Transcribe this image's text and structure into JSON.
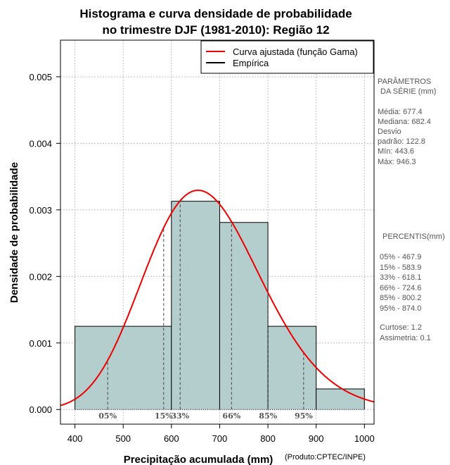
{
  "chart_data": {
    "type": "histogram",
    "title_line1": "Histograma e curva densidade de probabilidade",
    "title_line2": "no trimestre DJF (1981-2010): Região 12",
    "xlabel": "Precipitação acumulada (mm)",
    "ylabel": "Densidade de probabilidade",
    "credit": "(Produto:CPTEC/INPE)",
    "xlim": [
      370,
      1020
    ],
    "ylim": [
      -0.00022,
      0.00555
    ],
    "x_ticks": [
      400,
      500,
      600,
      700,
      800,
      900,
      1000
    ],
    "y_ticks": [
      0.0,
      0.001,
      0.002,
      0.003,
      0.004,
      0.005
    ],
    "y_tick_labels": [
      "0.000",
      "0.001",
      "0.002",
      "0.003",
      "0.004",
      "0.005"
    ],
    "grid": true,
    "bar_color": "#b4cdcd",
    "curve_color": "#ee0000",
    "bins": [
      {
        "x0": 400,
        "x1": 600,
        "density": 0.00125
      },
      {
        "x0": 600,
        "x1": 700,
        "density": 0.00313
      },
      {
        "x0": 700,
        "x1": 800,
        "density": 0.00281
      },
      {
        "x0": 800,
        "x1": 900,
        "density": 0.00125
      },
      {
        "x0": 900,
        "x1": 1000,
        "density": 0.00031
      }
    ],
    "gamma_curve": {
      "mean": 677.4,
      "sd": 122.8
    },
    "percentile_lines": [
      {
        "label": "05%",
        "value": 467.9
      },
      {
        "label": "15%",
        "value": 583.9
      },
      {
        "label": "33%",
        "value": 618.1
      },
      {
        "label": "66%",
        "value": 724.6
      },
      {
        "label": "85%",
        "value": 800.2
      },
      {
        "label": "95%",
        "value": 874.0
      }
    ],
    "legend": {
      "position": "top-right",
      "entries": [
        {
          "label": "Curva ajustada (função Gama)",
          "color": "#ee0000"
        },
        {
          "label": "Empírica",
          "color": "#000000"
        }
      ]
    }
  },
  "side_panel": {
    "params_title_1": "PARÂMETROS",
    "params_title_2": "DA SÉRIE (mm)",
    "params": [
      {
        "label": "Média:",
        "value": "677.4"
      },
      {
        "label": "Mediana:",
        "value": "682.4"
      },
      {
        "label": "Desvio",
        "value": ""
      },
      {
        "label": "padrão:",
        "value": "122.8"
      },
      {
        "label": "Mín:",
        "value": "443.6"
      },
      {
        "label": "Máx:",
        "value": "946.3"
      }
    ],
    "pct_title": "PERCENTIS(mm)",
    "percentiles": [
      {
        "label": "05% -",
        "value": "467.9"
      },
      {
        "label": "15% -",
        "value": "583.9"
      },
      {
        "label": "33% -",
        "value": "618.1"
      },
      {
        "label": "66% -",
        "value": "724.6"
      },
      {
        "label": "85% -",
        "value": "800.2"
      },
      {
        "label": "95% -",
        "value": "874.0"
      }
    ],
    "stats": [
      {
        "label": "Curtose:",
        "value": "1.2"
      },
      {
        "label": "Assimetria:",
        "value": "0.1"
      }
    ]
  }
}
